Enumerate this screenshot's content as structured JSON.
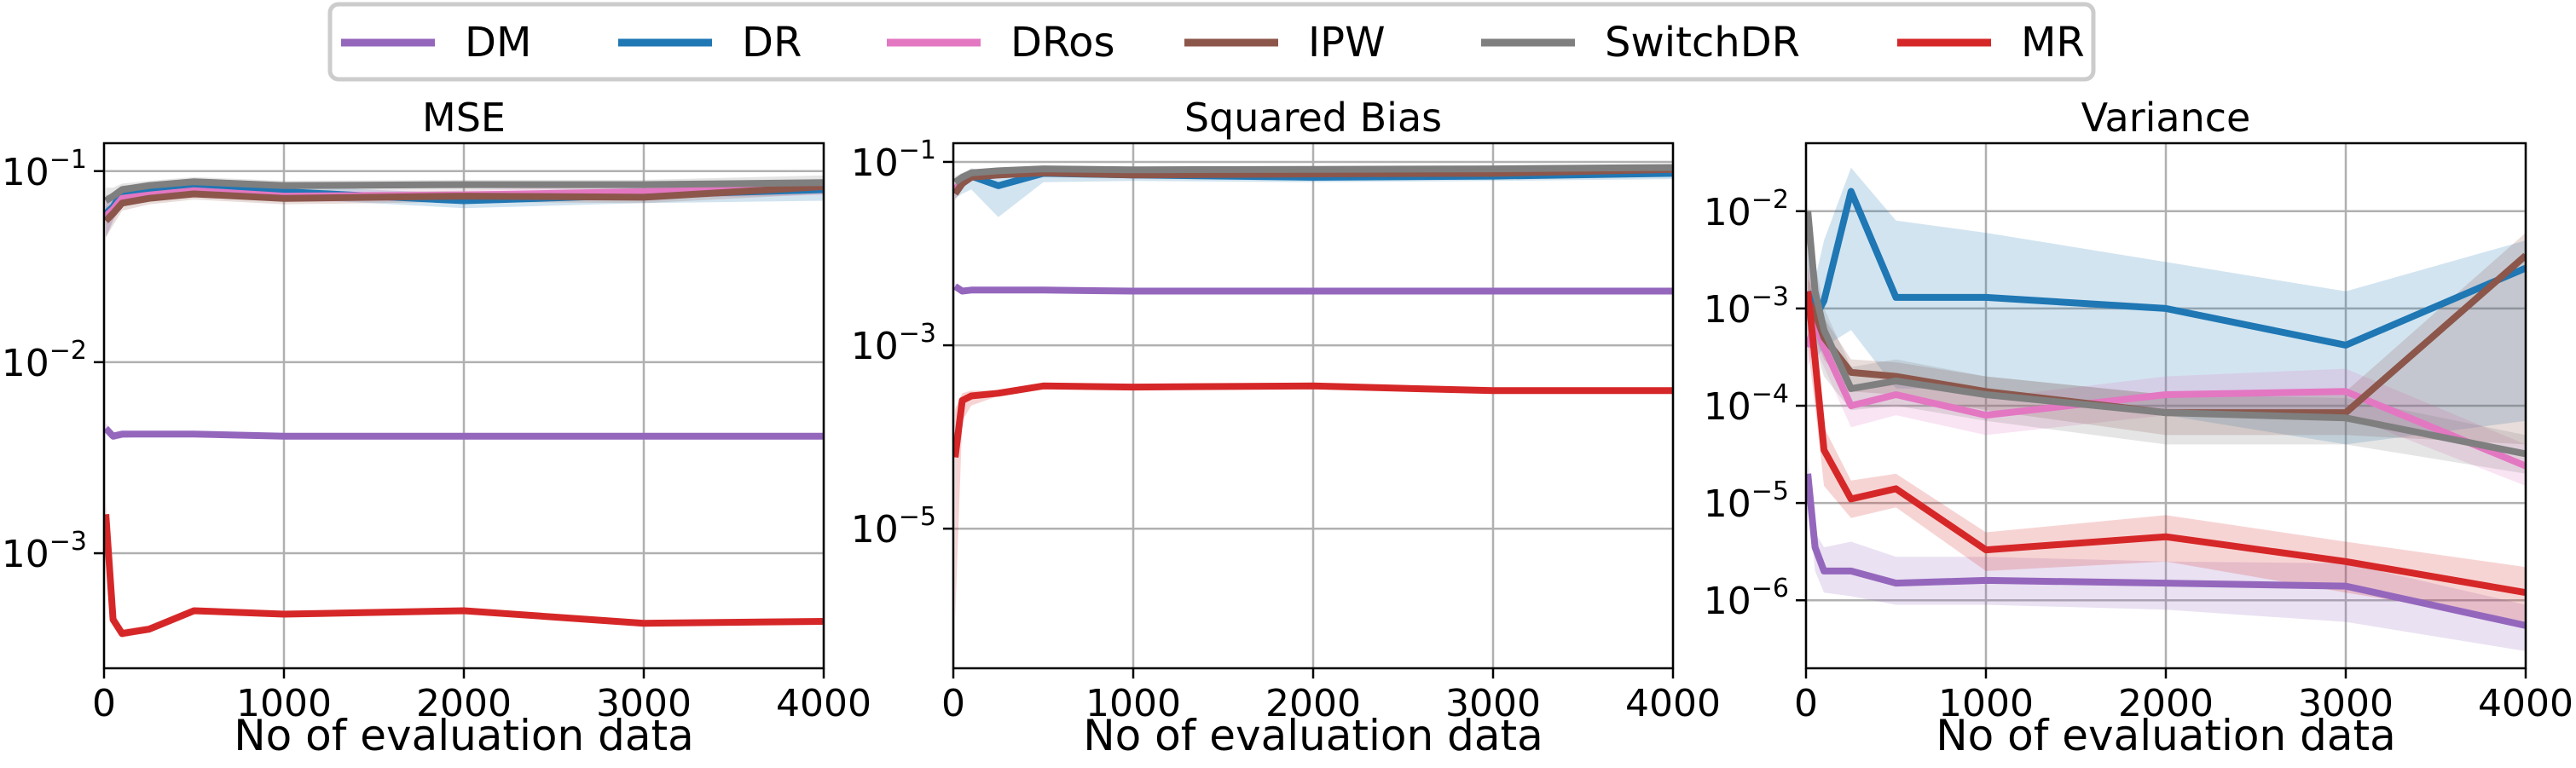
{
  "legend": [
    {
      "name": "DM",
      "color": "#9467bd"
    },
    {
      "name": "DR",
      "color": "#1f77b4"
    },
    {
      "name": "DRos",
      "color": "#e377c2"
    },
    {
      "name": "IPW",
      "color": "#8c564b"
    },
    {
      "name": "SwitchDR",
      "color": "#7f7f7f"
    },
    {
      "name": "MR",
      "color": "#d62728"
    }
  ],
  "chart_data": [
    {
      "type": "line",
      "title": "MSE",
      "xlabel": "No of evaluation data",
      "ylabel": "",
      "yscale": "log",
      "grid": true,
      "legend_position": "top-center",
      "xlim": [
        0,
        4000
      ],
      "ylim": [
        0.00025,
        0.14
      ],
      "xticks": [
        {
          "value": 0,
          "label": "0"
        },
        {
          "value": 1000,
          "label": "1000"
        },
        {
          "value": 2000,
          "label": "2000"
        },
        {
          "value": 3000,
          "label": "3000"
        },
        {
          "value": 4000,
          "label": "4000"
        }
      ],
      "yticks": [
        {
          "value": 0.001,
          "base": "10",
          "exp": "−3"
        },
        {
          "value": 0.01,
          "base": "10",
          "exp": "−2"
        },
        {
          "value": 0.1,
          "base": "10",
          "exp": "−1"
        }
      ],
      "x": [
        10,
        50,
        100,
        250,
        500,
        1000,
        2000,
        3000,
        4000
      ],
      "series": [
        {
          "name": "DM",
          "color": "#9467bd",
          "values": [
            0.0045,
            0.0041,
            0.0042,
            0.0042,
            0.0042,
            0.0041,
            0.0041,
            0.0041,
            0.0041
          ],
          "lower": [
            0.0042,
            0.0039,
            0.004,
            0.0041,
            0.0041,
            0.004,
            0.004,
            0.004,
            0.004
          ],
          "upper": [
            0.0048,
            0.0043,
            0.0043,
            0.0043,
            0.0043,
            0.0042,
            0.0042,
            0.0042,
            0.0042
          ]
        },
        {
          "name": "DR",
          "color": "#1f77b4",
          "values": [
            0.06,
            0.065,
            0.077,
            0.08,
            0.085,
            0.078,
            0.07,
            0.075,
            0.08
          ],
          "lower": [
            0.045,
            0.055,
            0.07,
            0.074,
            0.079,
            0.072,
            0.064,
            0.068,
            0.07
          ],
          "upper": [
            0.075,
            0.075,
            0.084,
            0.086,
            0.091,
            0.084,
            0.076,
            0.082,
            0.09
          ]
        },
        {
          "name": "DRos",
          "color": "#e377c2",
          "values": [
            0.058,
            0.063,
            0.072,
            0.075,
            0.079,
            0.074,
            0.075,
            0.078,
            0.083
          ],
          "lower": [
            0.045,
            0.055,
            0.066,
            0.07,
            0.074,
            0.069,
            0.07,
            0.072,
            0.075
          ],
          "upper": [
            0.07,
            0.071,
            0.078,
            0.08,
            0.084,
            0.079,
            0.08,
            0.084,
            0.091
          ]
        },
        {
          "name": "IPW",
          "color": "#8c564b",
          "values": [
            0.055,
            0.06,
            0.068,
            0.072,
            0.076,
            0.072,
            0.074,
            0.073,
            0.083
          ],
          "lower": [
            0.045,
            0.052,
            0.062,
            0.067,
            0.071,
            0.067,
            0.069,
            0.068,
            0.076
          ],
          "upper": [
            0.065,
            0.068,
            0.074,
            0.077,
            0.081,
            0.077,
            0.079,
            0.078,
            0.09
          ]
        },
        {
          "name": "SwitchDR",
          "color": "#7f7f7f",
          "values": [
            0.07,
            0.074,
            0.08,
            0.084,
            0.088,
            0.084,
            0.085,
            0.085,
            0.087
          ],
          "lower": [
            0.058,
            0.066,
            0.074,
            0.079,
            0.083,
            0.079,
            0.08,
            0.08,
            0.081
          ],
          "upper": [
            0.082,
            0.082,
            0.086,
            0.089,
            0.093,
            0.089,
            0.09,
            0.09,
            0.095
          ]
        },
        {
          "name": "MR",
          "color": "#d62728",
          "values": [
            0.0016,
            0.00045,
            0.00038,
            0.0004,
            0.0005,
            0.00048,
            0.0005,
            0.00043,
            0.00044
          ],
          "lower": [
            0.0013,
            0.00042,
            0.00036,
            0.00039,
            0.00048,
            0.00047,
            0.00048,
            0.00042,
            0.00043
          ],
          "upper": [
            0.0019,
            0.00048,
            0.0004,
            0.00042,
            0.00052,
            0.0005,
            0.00052,
            0.00044,
            0.00045
          ]
        }
      ]
    },
    {
      "type": "line",
      "title": "Squared Bias",
      "xlabel": "No of evaluation data",
      "ylabel": "",
      "yscale": "log",
      "grid": true,
      "xlim": [
        0,
        4000
      ],
      "ylim": [
        3e-07,
        0.16
      ],
      "xticks": [
        {
          "value": 0,
          "label": "0"
        },
        {
          "value": 1000,
          "label": "1000"
        },
        {
          "value": 2000,
          "label": "2000"
        },
        {
          "value": 3000,
          "label": "3000"
        },
        {
          "value": 4000,
          "label": "4000"
        }
      ],
      "yticks": [
        {
          "value": 1e-05,
          "base": "10",
          "exp": "−5"
        },
        {
          "value": 0.001,
          "base": "10",
          "exp": "−3"
        },
        {
          "value": 0.1,
          "base": "10",
          "exp": "−1"
        }
      ],
      "x": [
        10,
        50,
        100,
        250,
        500,
        1000,
        2000,
        3000,
        4000
      ],
      "series": [
        {
          "name": "DM",
          "color": "#9467bd",
          "values": [
            0.0044,
            0.0039,
            0.004,
            0.004,
            0.004,
            0.0039,
            0.0039,
            0.0039,
            0.0039
          ],
          "lower": [
            0.004,
            0.0037,
            0.0039,
            0.0039,
            0.0039,
            0.0038,
            0.0038,
            0.0038,
            0.0038
          ],
          "upper": [
            0.0048,
            0.0041,
            0.0041,
            0.0041,
            0.0041,
            0.004,
            0.004,
            0.004,
            0.004
          ]
        },
        {
          "name": "DR",
          "color": "#1f77b4",
          "values": [
            0.05,
            0.06,
            0.07,
            0.055,
            0.075,
            0.072,
            0.068,
            0.07,
            0.075
          ],
          "lower": [
            0.04,
            0.045,
            0.05,
            0.025,
            0.06,
            0.062,
            0.06,
            0.062,
            0.065
          ],
          "upper": [
            0.06,
            0.072,
            0.085,
            0.075,
            0.09,
            0.082,
            0.077,
            0.078,
            0.085
          ]
        },
        {
          "name": "DRos",
          "color": "#e377c2",
          "values": [
            0.05,
            0.062,
            0.07,
            0.072,
            0.078,
            0.074,
            0.075,
            0.078,
            0.083
          ],
          "lower": [
            0.04,
            0.055,
            0.064,
            0.067,
            0.073,
            0.069,
            0.07,
            0.072,
            0.076
          ],
          "upper": [
            0.06,
            0.069,
            0.076,
            0.077,
            0.083,
            0.079,
            0.08,
            0.084,
            0.09
          ]
        },
        {
          "name": "IPW",
          "color": "#8c564b",
          "values": [
            0.045,
            0.058,
            0.068,
            0.072,
            0.076,
            0.072,
            0.074,
            0.075,
            0.083
          ],
          "lower": [
            0.038,
            0.052,
            0.062,
            0.067,
            0.071,
            0.067,
            0.069,
            0.07,
            0.076
          ],
          "upper": [
            0.052,
            0.064,
            0.074,
            0.077,
            0.081,
            0.077,
            0.079,
            0.08,
            0.09
          ]
        },
        {
          "name": "SwitchDR",
          "color": "#7f7f7f",
          "values": [
            0.06,
            0.068,
            0.076,
            0.08,
            0.084,
            0.082,
            0.083,
            0.084,
            0.087
          ],
          "lower": [
            0.05,
            0.06,
            0.07,
            0.075,
            0.079,
            0.077,
            0.078,
            0.079,
            0.081
          ],
          "upper": [
            0.07,
            0.076,
            0.082,
            0.085,
            0.089,
            0.087,
            0.088,
            0.089,
            0.094
          ]
        },
        {
          "name": "MR",
          "color": "#d62728",
          "values": [
            6e-05,
            0.00025,
            0.00028,
            0.0003,
            0.00036,
            0.00035,
            0.00036,
            0.00032,
            0.00032
          ],
          "lower": [
            1e-06,
            0.00015,
            0.00022,
            0.00028,
            0.00035,
            0.00034,
            0.00035,
            0.00031,
            0.00031
          ],
          "upper": [
            0.0002,
            0.0003,
            0.00032,
            0.00032,
            0.00038,
            0.00036,
            0.00037,
            0.00033,
            0.00033
          ]
        }
      ]
    },
    {
      "type": "line",
      "title": "Variance",
      "xlabel": "No of evaluation data",
      "ylabel": "",
      "yscale": "log",
      "grid": true,
      "xlim": [
        0,
        4000
      ],
      "ylim": [
        2e-07,
        0.05
      ],
      "xticks": [
        {
          "value": 0,
          "label": "0"
        },
        {
          "value": 1000,
          "label": "1000"
        },
        {
          "value": 2000,
          "label": "2000"
        },
        {
          "value": 3000,
          "label": "3000"
        },
        {
          "value": 4000,
          "label": "4000"
        }
      ],
      "yticks": [
        {
          "value": 1e-06,
          "base": "10",
          "exp": "−6"
        },
        {
          "value": 1e-05,
          "base": "10",
          "exp": "−5"
        },
        {
          "value": 0.0001,
          "base": "10",
          "exp": "−4"
        },
        {
          "value": 0.001,
          "base": "10",
          "exp": "−3"
        },
        {
          "value": 0.01,
          "base": "10",
          "exp": "−2"
        }
      ],
      "x": [
        10,
        50,
        100,
        250,
        500,
        1000,
        2000,
        3000,
        4000
      ],
      "series": [
        {
          "name": "DM",
          "color": "#9467bd",
          "values": [
            2e-05,
            3.5e-06,
            2e-06,
            2e-06,
            1.5e-06,
            1.6e-06,
            1.5e-06,
            1.4e-06,
            5.5e-07
          ],
          "lower": [
            1.2e-05,
            2e-06,
            1.2e-06,
            1.1e-06,
            9e-07,
            9e-07,
            8e-07,
            6e-07,
            3e-07
          ],
          "upper": [
            3e-05,
            5e-06,
            3.5e-06,
            4e-06,
            2.8e-06,
            2.8e-06,
            2.5e-06,
            2.4e-06,
            9e-07
          ]
        },
        {
          "name": "DR",
          "color": "#1f77b4",
          "values": [
            0.0015,
            0.0008,
            0.0012,
            0.016,
            0.0013,
            0.0013,
            0.001,
            0.00042,
            0.0026
          ],
          "lower": [
            0.0005,
            0.0003,
            0.0004,
            0.0006,
            0.00015,
            0.00015,
            8e-05,
            4e-05,
            7e-05
          ],
          "upper": [
            0.004,
            0.002,
            0.005,
            0.028,
            0.008,
            0.006,
            0.003,
            0.0015,
            0.005
          ]
        },
        {
          "name": "DRos",
          "color": "#e377c2",
          "values": [
            0.0004,
            0.0007,
            0.0004,
            0.0001,
            0.00013,
            8e-05,
            0.00013,
            0.00014,
            2.4e-05
          ],
          "lower": [
            0.00025,
            0.0004,
            0.00025,
            6e-05,
            8e-05,
            5e-05,
            8e-05,
            8e-05,
            1.5e-05
          ],
          "upper": [
            0.0007,
            0.0012,
            0.0007,
            0.00016,
            0.0002,
            0.00012,
            0.0002,
            0.00024,
            4e-05
          ]
        },
        {
          "name": "IPW",
          "color": "#8c564b",
          "values": [
            0.0012,
            0.0009,
            0.0005,
            0.00022,
            0.0002,
            0.00014,
            8.5e-05,
            8.5e-05,
            0.0035
          ],
          "lower": [
            0.0006,
            0.0005,
            0.0003,
            0.00014,
            0.00013,
            9e-05,
            5e-05,
            5e-05,
            4e-05
          ],
          "upper": [
            0.002,
            0.0015,
            0.0008,
            0.0003,
            0.00028,
            0.0002,
            0.00013,
            0.00014,
            0.006
          ]
        },
        {
          "name": "SwitchDR",
          "color": "#7f7f7f",
          "values": [
            0.01,
            0.0015,
            0.0006,
            0.00015,
            0.00018,
            0.00013,
            8.5e-05,
            7.5e-05,
            3.2e-05
          ],
          "lower": [
            0.0008,
            0.0004,
            0.0002,
            9e-05,
            0.0001,
            7e-05,
            4e-05,
            4e-05,
            2e-05
          ],
          "upper": [
            0.012,
            0.003,
            0.001,
            0.00025,
            0.0003,
            0.0002,
            0.00013,
            0.00012,
            5e-05
          ]
        },
        {
          "name": "MR",
          "color": "#d62728",
          "values": [
            0.0015,
            0.0003,
            3.5e-05,
            1.1e-05,
            1.4e-05,
            3.3e-06,
            4.5e-06,
            2.5e-06,
            1.2e-06
          ],
          "lower": [
            0.0004,
            0.0001,
            1.5e-05,
            7e-06,
            9e-06,
            2e-06,
            2.5e-06,
            1.2e-06,
            6e-07
          ],
          "upper": [
            0.003,
            0.0007,
            6e-05,
            1.7e-05,
            2e-05,
            5e-06,
            7.5e-06,
            4e-06,
            2.2e-06
          ]
        }
      ]
    }
  ]
}
